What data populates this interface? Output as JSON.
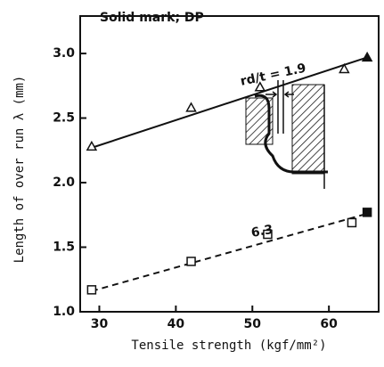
{
  "chart_data": {
    "type": "scatter",
    "title": "Solid mark; DP",
    "xlabel": "Tensile strength (kgf/mm²)",
    "ylabel": "Length of over run λ (mm)",
    "xlim": [
      27.5,
      66.5
    ],
    "ylim": [
      1.0,
      3.29
    ],
    "xticks": [
      30,
      40,
      50,
      60
    ],
    "yticks": [
      {
        "value": 1.0,
        "label": "1.0"
      },
      {
        "value": 1.5,
        "label": "1.5"
      },
      {
        "value": 2.0,
        "label": "2.0"
      },
      {
        "value": 2.5,
        "label": "2.5"
      },
      {
        "value": 3.0,
        "label": "3.0"
      }
    ],
    "series": [
      {
        "label": "rd/t = 1.9",
        "marker": "triangle",
        "color": "#111",
        "dashed": false,
        "x": [
          29,
          42,
          51,
          62,
          65
        ],
        "values": [
          2.28,
          2.58,
          2.74,
          2.88,
          2.97
        ],
        "filled": [
          false,
          false,
          false,
          false,
          true
        ],
        "fit_x": [
          29,
          65
        ],
        "fit_values": [
          2.27,
          2.97
        ]
      },
      {
        "label": "6.3",
        "marker": "square",
        "color": "#111",
        "dashed": true,
        "x": [
          29,
          42,
          52,
          63,
          65
        ],
        "values": [
          1.17,
          1.39,
          1.6,
          1.69,
          1.77
        ],
        "filled": [
          false,
          false,
          false,
          false,
          true
        ],
        "fit_x": [
          29,
          65
        ],
        "fit_values": [
          1.16,
          1.76
        ]
      }
    ]
  }
}
